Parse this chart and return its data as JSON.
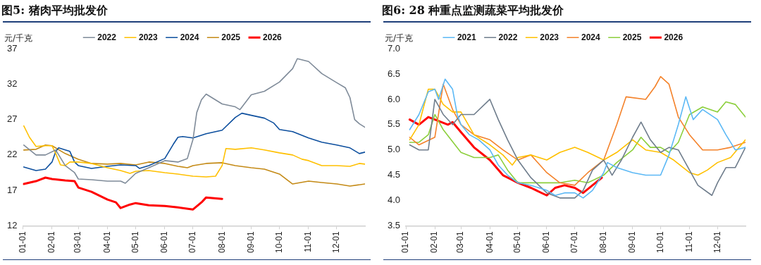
{
  "chart_data": [
    {
      "type": "line",
      "title": "图5: 猪肉平均批发价",
      "ylabel": "元/千克",
      "legend": "top",
      "grid": false,
      "marker": "none",
      "line_style": "solid",
      "xlim": [
        "--01-01",
        "--12-31"
      ],
      "xticks": [
        {
          "value": "--01-01",
          "label": "01-01"
        },
        {
          "value": "--02-01",
          "label": "02-01"
        },
        {
          "value": "--03-01",
          "label": "03-01"
        },
        {
          "value": "--04-01",
          "label": "04-01"
        },
        {
          "value": "--05-01",
          "label": "05-01"
        },
        {
          "value": "--06-01",
          "label": "06-01"
        },
        {
          "value": "--07-01",
          "label": "07-01"
        },
        {
          "value": "--08-01",
          "label": "08-01"
        },
        {
          "value": "--09-01",
          "label": "09-01"
        },
        {
          "value": "--10-01",
          "label": "10-01"
        },
        {
          "value": "--11-01",
          "label": "11-01"
        },
        {
          "value": "--12-01",
          "label": "12-01"
        }
      ],
      "ylim": [
        12,
        37
      ],
      "yticks": [
        12,
        17,
        22,
        27,
        32,
        37
      ],
      "series": [
        {
          "name": "2022",
          "color": "#7f8b99",
          "x": [
            "--01-02",
            "--01-15",
            "--01-25",
            "--02-05",
            "--02-15",
            "--02-25",
            "--03-01",
            "--03-15",
            "--04-01",
            "--04-15",
            "--04-20",
            "--05-01",
            "--05-15",
            "--06-01",
            "--06-15",
            "--06-25",
            "--07-01",
            "--07-05",
            "--07-10",
            "--07-15",
            "--08-01",
            "--08-15",
            "--08-20",
            "--09-01",
            "--09-15",
            "--10-01",
            "--10-15",
            "--10-20",
            "--11-01",
            "--11-15",
            "--12-01",
            "--12-10",
            "--12-15",
            "--12-20",
            "--12-25",
            "--12-31"
          ],
          "values": [
            23.4,
            22,
            22,
            22.7,
            20.5,
            19.5,
            18.6,
            18.5,
            18.3,
            18.3,
            18,
            19.4,
            20.2,
            21.2,
            21,
            21.5,
            24.2,
            28,
            29.8,
            30.6,
            29.2,
            28.8,
            28.4,
            30.5,
            31,
            32.3,
            34.2,
            35.6,
            35.2,
            33.5,
            32.2,
            31.5,
            30.1,
            27,
            26.4,
            25.9
          ]
        },
        {
          "name": "2023",
          "color": "#ffc000",
          "x": [
            "--01-02",
            "--01-08",
            "--01-15",
            "--01-25",
            "--02-01",
            "--02-05",
            "--02-10",
            "--02-15",
            "--02-20",
            "--03-01",
            "--03-15",
            "--04-01",
            "--04-15",
            "--04-25",
            "--05-01",
            "--05-15",
            "--06-01",
            "--06-15",
            "--07-01",
            "--07-15",
            "--07-25",
            "--08-01",
            "--08-05",
            "--08-15",
            "--09-01",
            "--09-15",
            "--10-01",
            "--10-15",
            "--10-25",
            "--11-01",
            "--11-15",
            "--12-01",
            "--12-15",
            "--12-25",
            "--12-31"
          ],
          "values": [
            26.1,
            24.5,
            23.2,
            23.3,
            23.3,
            22.2,
            20.6,
            20.5,
            21,
            21,
            20.8,
            20.2,
            19.8,
            19.4,
            19.7,
            19.8,
            19.5,
            19.3,
            19,
            18.9,
            19,
            20.5,
            22.9,
            22.8,
            23,
            22.7,
            22.3,
            22,
            21.4,
            21.2,
            20.5,
            20.5,
            20.4,
            20.8,
            20.7
          ]
        },
        {
          "name": "2024",
          "color": "#0d4f9e",
          "x": [
            "--01-02",
            "--01-15",
            "--01-25",
            "--02-01",
            "--02-05",
            "--02-08",
            "--02-20",
            "--02-25",
            "--03-01",
            "--03-15",
            "--04-01",
            "--04-15",
            "--05-01",
            "--05-05",
            "--05-15",
            "--06-01",
            "--06-10",
            "--06-15",
            "--06-20",
            "--07-01",
            "--07-15",
            "--08-01",
            "--08-15",
            "--08-22",
            "--09-01",
            "--09-15",
            "--09-25",
            "--10-01",
            "--10-15",
            "--11-01",
            "--11-15",
            "--12-01",
            "--12-15",
            "--12-25",
            "--12-31"
          ],
          "values": [
            20.3,
            19.8,
            20,
            21,
            22.5,
            23,
            22.5,
            21,
            20.5,
            20.1,
            20.4,
            20.6,
            20.5,
            20.1,
            20.5,
            21.5,
            23.5,
            24.5,
            24.6,
            24.4,
            25,
            25.5,
            27.3,
            27.9,
            27.6,
            27.2,
            26.5,
            25.6,
            25.3,
            24.4,
            23.8,
            23.4,
            23,
            22.2,
            22.4
          ]
        },
        {
          "name": "2025",
          "color": "#c48a16",
          "x": [
            "--01-02",
            "--01-15",
            "--01-25",
            "--02-01",
            "--02-15",
            "--03-01",
            "--03-15",
            "--04-01",
            "--04-15",
            "--05-01",
            "--05-15",
            "--06-01",
            "--06-15",
            "--06-25",
            "--07-01",
            "--07-15",
            "--08-01",
            "--08-15",
            "--09-01",
            "--09-15",
            "--10-01",
            "--10-15",
            "--11-01",
            "--11-15",
            "--12-01",
            "--12-15",
            "--12-31"
          ],
          "values": [
            22.7,
            22.8,
            23.4,
            23.3,
            22.2,
            21.4,
            20.8,
            20.7,
            20.8,
            20.6,
            21,
            20.8,
            20.4,
            20.2,
            20.5,
            20.8,
            20.9,
            20.5,
            20.2,
            20,
            19.3,
            17.9,
            18.3,
            18.1,
            17.9,
            17.6,
            17.9
          ]
        },
        {
          "name": "2026",
          "color": "#ff0000",
          "x": [
            "--01-02",
            "--01-15",
            "--01-25",
            "--02-01",
            "--02-15",
            "--02-25",
            "--03-01",
            "--03-15",
            "--04-01",
            "--04-10",
            "--04-15",
            "--04-25",
            "--05-01",
            "--05-15",
            "--06-01",
            "--06-15",
            "--07-01",
            "--07-10",
            "--07-15",
            "--08-01"
          ],
          "values": [
            17.9,
            18.3,
            18.8,
            18.6,
            18.4,
            18.3,
            17.4,
            16.8,
            15.7,
            15.3,
            14.5,
            15,
            15.2,
            14.9,
            14.8,
            14.6,
            14.3,
            15.3,
            16,
            15.8
          ]
        }
      ]
    },
    {
      "type": "line",
      "title": "图6: 28 种重点监测蔬菜平均批发价",
      "ylabel": "元/千克",
      "legend": "top",
      "grid": false,
      "marker": "none",
      "line_style": "solid",
      "xlim": [
        "--01-01",
        "--12-31"
      ],
      "xticks": [
        {
          "value": "--01-01",
          "label": "01-01"
        },
        {
          "value": "--02-01",
          "label": "02-01"
        },
        {
          "value": "--03-01",
          "label": "03-01"
        },
        {
          "value": "--04-01",
          "label": "04-01"
        },
        {
          "value": "--05-01",
          "label": "05-01"
        },
        {
          "value": "--06-01",
          "label": "06-01"
        },
        {
          "value": "--07-01",
          "label": "07-01"
        },
        {
          "value": "--08-01",
          "label": "08-01"
        },
        {
          "value": "--09-01",
          "label": "09-01"
        },
        {
          "value": "--10-01",
          "label": "10-01"
        },
        {
          "value": "--11-01",
          "label": "11-01"
        },
        {
          "value": "--12-01",
          "label": "12-01"
        }
      ],
      "ylim": [
        3.5,
        7
      ],
      "yticks": [
        {
          "value": 3.5,
          "label": "3.5"
        },
        {
          "value": 4,
          "label": "4.0"
        },
        {
          "value": 4.5,
          "label": "4.5"
        },
        {
          "value": 5,
          "label": "5.0"
        },
        {
          "value": 5.5,
          "label": "5.5"
        },
        {
          "value": 6,
          "label": "6.0"
        },
        {
          "value": 6.5,
          "label": "6.5"
        },
        {
          "value": 7,
          "label": "7.0"
        }
      ],
      "series": [
        {
          "name": "2021",
          "color": "#5bb8f5",
          "x": [
            "--01-05",
            "--01-15",
            "--01-25",
            "--02-01",
            "--02-05",
            "--02-12",
            "--02-20",
            "--02-25",
            "--03-01",
            "--03-10",
            "--03-20",
            "--04-01",
            "--04-10",
            "--04-20",
            "--05-01",
            "--05-15",
            "--06-01",
            "--06-10",
            "--06-20",
            "--07-01",
            "--07-10",
            "--07-20",
            "--08-01",
            "--08-05",
            "--08-15",
            "--09-01",
            "--09-15",
            "--10-01",
            "--10-10",
            "--10-20",
            "--10-28",
            "--11-05",
            "--11-15",
            "--12-01",
            "--12-10",
            "--12-20",
            "--12-31"
          ],
          "values": [
            5.4,
            5.7,
            6.15,
            6.2,
            6,
            6.4,
            6.2,
            5.7,
            5.5,
            5.3,
            5.2,
            5,
            4.7,
            4.5,
            4.35,
            4.3,
            4.2,
            4.1,
            4.15,
            4.15,
            4.05,
            4.2,
            4.55,
            4.75,
            4.65,
            4.55,
            4.5,
            4.5,
            4.9,
            5.5,
            6.05,
            5.6,
            5.8,
            5.6,
            5.3,
            5,
            5.05
          ]
        },
        {
          "name": "2022",
          "color": "#6f7d8c",
          "x": [
            "--01-05",
            "--01-15",
            "--01-25",
            "--02-01",
            "--02-10",
            "--02-20",
            "--03-01",
            "--03-15",
            "--04-01",
            "--04-10",
            "--04-20",
            "--05-01",
            "--05-15",
            "--06-01",
            "--06-15",
            "--07-01",
            "--07-10",
            "--07-20",
            "--08-01",
            "--08-10",
            "--08-20",
            "--09-01",
            "--09-10",
            "--09-20",
            "--10-01",
            "--10-10",
            "--10-20",
            "--11-01",
            "--11-10",
            "--11-25",
            "--12-01",
            "--12-10",
            "--12-20",
            "--12-31"
          ],
          "values": [
            5.1,
            5,
            5,
            6,
            5.7,
            5.5,
            5.7,
            5.7,
            6,
            5.6,
            5.2,
            4.8,
            4.45,
            4.15,
            4.05,
            4.05,
            4.2,
            4.6,
            4.8,
            4.5,
            4.8,
            5.25,
            5.55,
            5.2,
            4.95,
            5.05,
            5,
            4.6,
            4.3,
            4.1,
            4.35,
            4.65,
            4.65,
            5.05
          ]
        },
        {
          "name": "2023",
          "color": "#ffc000",
          "x": [
            "--01-05",
            "--01-15",
            "--01-25",
            "--02-01",
            "--02-10",
            "--02-20",
            "--03-01",
            "--03-15",
            "--04-01",
            "--04-15",
            "--04-25",
            "--05-01",
            "--05-15",
            "--06-01",
            "--06-15",
            "--07-01",
            "--07-15",
            "--08-01",
            "--08-15",
            "--09-01",
            "--09-15",
            "--10-01",
            "--10-15",
            "--11-01",
            "--11-10",
            "--11-20",
            "--12-01",
            "--12-15",
            "--12-31"
          ],
          "values": [
            5.2,
            5.5,
            6.2,
            6.2,
            5.9,
            5.75,
            5.75,
            5.3,
            5.1,
            4.9,
            4.7,
            4.85,
            4.9,
            4.8,
            4.95,
            5.05,
            4.95,
            4.8,
            4.95,
            5.2,
            5,
            4.95,
            4.8,
            4.55,
            4.5,
            4.6,
            4.75,
            4.85,
            5.2
          ]
        },
        {
          "name": "2024",
          "color": "#f4822a",
          "x": [
            "--01-05",
            "--01-15",
            "--02-01",
            "--02-10",
            "--02-20",
            "--03-01",
            "--03-15",
            "--04-01",
            "--04-15",
            "--05-01",
            "--05-15",
            "--06-01",
            "--06-15",
            "--07-01",
            "--07-15",
            "--08-01",
            "--08-15",
            "--08-25",
            "--09-15",
            "--09-25",
            "--10-01",
            "--10-10",
            "--10-20",
            "--11-01",
            "--11-15",
            "--12-01",
            "--12-15",
            "--12-31"
          ],
          "values": [
            5.25,
            5.1,
            5.25,
            6.3,
            5.8,
            5.5,
            5.3,
            5.2,
            5,
            4.8,
            4.9,
            4.55,
            4.35,
            4.3,
            4.55,
            4.8,
            5.5,
            6.05,
            6,
            6.25,
            6.45,
            6.3,
            5.65,
            5.3,
            5,
            5,
            5.05,
            5.15
          ]
        },
        {
          "name": "2025",
          "color": "#8ccf3c",
          "x": [
            "--01-05",
            "--01-15",
            "--01-25",
            "--02-01",
            "--02-10",
            "--03-01",
            "--03-15",
            "--04-01",
            "--04-10",
            "--04-20",
            "--05-01",
            "--05-15",
            "--06-01",
            "--06-15",
            "--07-01",
            "--07-15",
            "--08-01",
            "--08-15",
            "--09-01",
            "--09-10",
            "--09-20",
            "--10-01",
            "--10-10",
            "--10-20",
            "--11-01",
            "--11-15",
            "--12-01",
            "--12-10",
            "--12-20",
            "--12-31"
          ],
          "values": [
            5.15,
            5.15,
            5.3,
            5.7,
            5.4,
            4.95,
            4.85,
            4.85,
            4.9,
            4.6,
            4.35,
            4.35,
            4.35,
            4.35,
            4.4,
            4.35,
            4.5,
            4.75,
            5,
            5.25,
            5.05,
            5.05,
            4.95,
            5.15,
            5.7,
            5.85,
            5.75,
            5.95,
            5.9,
            5.65
          ]
        },
        {
          "name": "2026",
          "color": "#ff0000",
          "x": [
            "--01-05",
            "--01-15",
            "--01-25",
            "--02-01",
            "--02-15",
            "--02-20",
            "--03-01",
            "--03-15",
            "--04-01",
            "--04-15",
            "--05-01",
            "--05-15",
            "--06-01",
            "--06-10",
            "--06-20",
            "--07-01",
            "--07-10",
            "--07-20",
            "--07-30"
          ],
          "values": [
            5.6,
            5.5,
            5.65,
            5.6,
            5.5,
            5.55,
            5.35,
            5.05,
            4.8,
            4.5,
            4.35,
            4.25,
            4.1,
            4.25,
            4.3,
            4.25,
            4.15,
            4.3,
            4.45
          ]
        }
      ]
    }
  ]
}
